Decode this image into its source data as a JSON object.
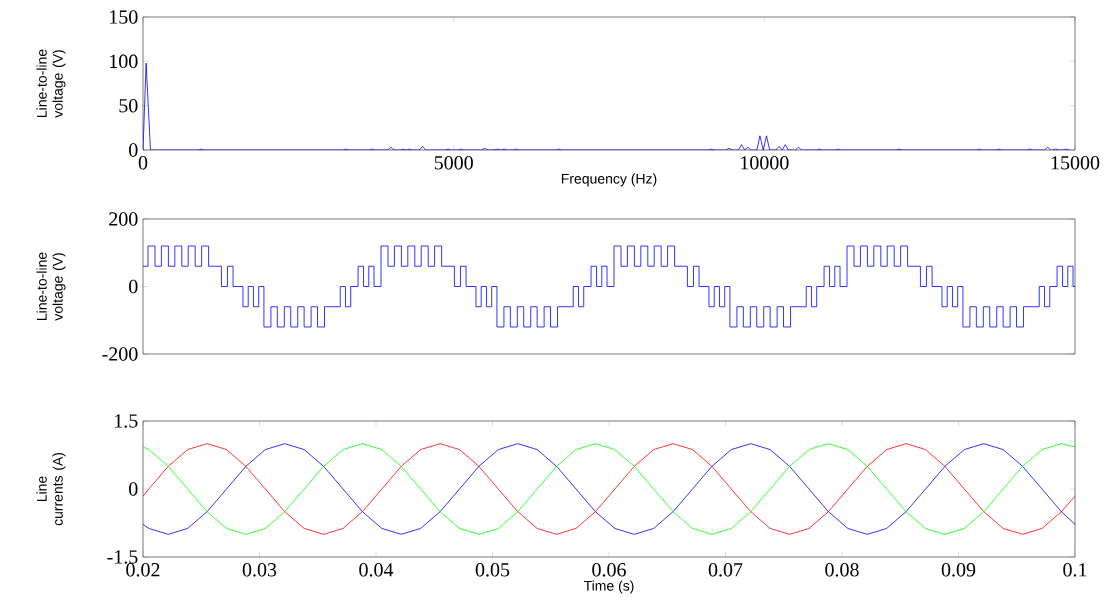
{
  "chart_data": [
    {
      "type": "line",
      "xlabel": "Frequency (Hz)",
      "ylabel": "Line-to-line voltage (V)",
      "xlim": [
        0,
        15000
      ],
      "ylim": [
        0,
        150
      ],
      "xticks": [
        0,
        5000,
        10000,
        15000
      ],
      "yticks": [
        0,
        50,
        100,
        150
      ],
      "series": [
        {
          "color": "#0000ff",
          "x": [
            0,
            50,
            120,
            884,
            934,
            984,
            3220,
            3270,
            3320,
            3640,
            3690,
            3740,
            3940,
            3990,
            4040,
            4140,
            4190,
            4240,
            4290,
            4340,
            4450,
            4500,
            4550,
            4863,
            4913,
            4963,
            5065,
            5115,
            5165,
            5450,
            5500,
            5550,
            5650,
            5700,
            5760,
            5810,
            5860,
            5950,
            6000,
            6050,
            6640,
            6690,
            6740,
            9096,
            9146,
            9196,
            9382,
            9432,
            9482,
            9583,
            9633,
            9683,
            9733,
            9783,
            9880,
            9929,
            9982,
            10035,
            10085,
            10187,
            10237,
            10287,
            10337,
            10387,
            10500,
            10550,
            10600,
            10836,
            10886,
            10936,
            11130,
            11180,
            11230,
            12120,
            12170,
            12220,
            13410,
            13460,
            13510,
            13720,
            13770,
            13820,
            14220,
            14270,
            14320,
            14510,
            14560,
            14610,
            14640,
            14690,
            14740,
            14810,
            14860,
            14910
          ],
          "values": [
            0,
            98,
            0,
            0,
            1,
            0,
            0,
            1,
            0,
            0,
            1,
            0,
            0,
            3,
            0,
            0,
            1,
            0,
            1,
            0,
            0,
            4,
            0,
            0,
            1,
            0,
            0,
            1,
            0,
            0,
            2,
            0,
            0,
            1,
            0,
            1,
            0,
            0,
            1,
            0,
            0,
            1,
            0,
            0,
            1,
            0,
            0,
            2,
            0,
            0,
            6,
            0,
            3,
            0,
            0,
            16,
            0,
            16,
            0,
            0,
            4,
            0,
            6,
            0,
            0,
            3,
            0,
            0,
            1,
            0,
            0,
            1,
            0,
            0,
            1,
            0,
            0,
            1,
            0,
            0,
            1,
            0,
            0,
            1,
            0,
            0,
            3,
            0,
            0,
            1,
            0,
            0,
            1,
            0
          ]
        }
      ]
    },
    {
      "type": "step",
      "ylabel": "Line-to-line voltage (V)",
      "xlim": [
        0.02,
        0.1
      ],
      "ylim": [
        -200,
        200
      ],
      "yticks": [
        -200,
        0,
        200
      ],
      "tick_labels": "y",
      "x": [
        0.02,
        0.02043,
        0.02103,
        0.02158,
        0.02218,
        0.02273,
        0.02333,
        0.02388,
        0.02448,
        0.02503,
        0.02563,
        0.02627,
        0.02673,
        0.02725,
        0.02773,
        0.02858,
        0.02903,
        0.02948,
        0.02993,
        0.03038,
        0.03098,
        0.03153,
        0.03213,
        0.03268,
        0.03328,
        0.03383,
        0.03443,
        0.03498,
        0.03558,
        0.03648,
        0.03693,
        0.03738,
        0.03783,
        0.03846,
        0.03893,
        0.03938,
        0.03983,
        0.04043,
        0.04103,
        0.04158,
        0.04218,
        0.04273,
        0.04333,
        0.04388,
        0.04448,
        0.04503,
        0.04563,
        0.04627,
        0.04673,
        0.04725,
        0.04773,
        0.04858,
        0.04903,
        0.04948,
        0.04993,
        0.05038,
        0.05098,
        0.05153,
        0.05213,
        0.05268,
        0.05328,
        0.05383,
        0.05443,
        0.05498,
        0.05558,
        0.05648,
        0.05693,
        0.05738,
        0.05783,
        0.05846,
        0.05893,
        0.05938,
        0.05983,
        0.06043,
        0.06103,
        0.06158,
        0.06218,
        0.06273,
        0.06333,
        0.06388,
        0.06448,
        0.06503,
        0.06563,
        0.06627,
        0.06673,
        0.06725,
        0.06773,
        0.06858,
        0.06903,
        0.06948,
        0.06993,
        0.07038,
        0.07098,
        0.07153,
        0.07213,
        0.07268,
        0.07328,
        0.07383,
        0.07443,
        0.07498,
        0.07558,
        0.07648,
        0.07693,
        0.07738,
        0.07783,
        0.07846,
        0.07893,
        0.07938,
        0.07983,
        0.08043,
        0.08103,
        0.08158,
        0.08218,
        0.08273,
        0.08333,
        0.08388,
        0.08448,
        0.08503,
        0.08563,
        0.08627,
        0.08673,
        0.08725,
        0.08773,
        0.08858,
        0.08903,
        0.08948,
        0.08993,
        0.09038,
        0.09098,
        0.09153,
        0.09213,
        0.09268,
        0.09328,
        0.09383,
        0.09443,
        0.09498,
        0.09558,
        0.09648,
        0.09693,
        0.09738,
        0.09783,
        0.09846,
        0.09893,
        0.09938,
        0.09983,
        0.1
      ],
      "series": [
        {
          "color": "#0000ff",
          "values": [
            60,
            120,
            60,
            120,
            60,
            120,
            60,
            120,
            60,
            120,
            60,
            60,
            0,
            60,
            0,
            -60,
            0,
            -60,
            0,
            -120,
            -60,
            -120,
            -60,
            -120,
            -60,
            -120,
            -60,
            -120,
            -60,
            -60,
            0,
            -60,
            0,
            60,
            0,
            60,
            0,
            120,
            60,
            120,
            60,
            120,
            60,
            120,
            60,
            120,
            60,
            60,
            0,
            60,
            0,
            -60,
            0,
            -60,
            0,
            -120,
            -60,
            -120,
            -60,
            -120,
            -60,
            -120,
            -60,
            -120,
            -60,
            -60,
            0,
            -60,
            0,
            60,
            0,
            60,
            0,
            120,
            60,
            120,
            60,
            120,
            60,
            120,
            60,
            120,
            60,
            60,
            0,
            60,
            0,
            -60,
            0,
            -60,
            0,
            -120,
            -60,
            -120,
            -60,
            -120,
            -60,
            -120,
            -60,
            -120,
            -60,
            -60,
            0,
            -60,
            0,
            60,
            0,
            60,
            0,
            120,
            60,
            120,
            60,
            120,
            60,
            120,
            60,
            120,
            60,
            60,
            0,
            60,
            0,
            -60,
            0,
            -60,
            0,
            -120,
            -60,
            -120,
            -60,
            -120,
            -60,
            -120,
            -60,
            -120,
            -60,
            -60,
            0,
            -60,
            0,
            60,
            0,
            60,
            0,
            0
          ]
        }
      ]
    },
    {
      "type": "line",
      "xlabel": "Time (s)",
      "ylabel": "Line currents (A)",
      "xlim": [
        0.02,
        0.1
      ],
      "ylim": [
        -1.5,
        1.5
      ],
      "xticks": [
        0.02,
        0.03,
        0.04,
        0.05,
        0.06,
        0.07,
        0.08,
        0.09,
        0.1
      ],
      "yticks": [
        -1.5,
        0,
        1.5
      ],
      "x": [
        0.02,
        0.0205,
        0.02217,
        0.02383,
        0.0255,
        0.02717,
        0.02883,
        0.0305,
        0.03217,
        0.03383,
        0.0355,
        0.03717,
        0.03883,
        0.0405,
        0.04217,
        0.04383,
        0.0455,
        0.04717,
        0.04883,
        0.0505,
        0.05217,
        0.05383,
        0.0555,
        0.05717,
        0.05883,
        0.0605,
        0.06217,
        0.06383,
        0.0655,
        0.06717,
        0.06883,
        0.0705,
        0.07217,
        0.07383,
        0.0755,
        0.07717,
        0.07883,
        0.0805,
        0.08217,
        0.08383,
        0.0855,
        0.08717,
        0.08883,
        0.0905,
        0.09217,
        0.09383,
        0.0955,
        0.09717,
        0.09883,
        0.1
      ],
      "series": [
        {
          "color": "#ff0000",
          "values": [
            -0.16,
            0,
            0.5,
            0.87,
            1,
            0.87,
            0.5,
            0,
            -0.5,
            -0.87,
            -1,
            -0.87,
            -0.5,
            0,
            0.5,
            0.87,
            1,
            0.87,
            0.5,
            0,
            -0.5,
            -0.87,
            -1,
            -0.87,
            -0.5,
            0,
            0.5,
            0.87,
            1,
            0.87,
            0.5,
            0,
            -0.5,
            -0.87,
            -1,
            -0.87,
            -0.5,
            0,
            0.5,
            0.87,
            1,
            0.87,
            0.5,
            0,
            -0.5,
            -0.87,
            -1,
            -0.87,
            -0.5,
            -0.16
          ]
        },
        {
          "color": "#0000ff",
          "values": [
            -0.78,
            -0.87,
            -1,
            -0.87,
            -0.5,
            0,
            0.5,
            0.87,
            1,
            0.87,
            0.5,
            0,
            -0.5,
            -0.87,
            -1,
            -0.87,
            -0.5,
            0,
            0.5,
            0.87,
            1,
            0.87,
            0.5,
            0,
            -0.5,
            -0.87,
            -1,
            -0.87,
            -0.5,
            0,
            0.5,
            0.87,
            1,
            0.87,
            0.5,
            0,
            -0.5,
            -0.87,
            -1,
            -0.87,
            -0.5,
            0,
            0.5,
            0.87,
            1,
            0.87,
            0.5,
            0,
            -0.5,
            -0.78
          ]
        },
        {
          "color": "#00ff00",
          "values": [
            0.93,
            0.87,
            0.5,
            0,
            -0.5,
            -0.87,
            -1,
            -0.87,
            -0.5,
            0,
            0.5,
            0.87,
            1,
            0.87,
            0.5,
            0,
            -0.5,
            -0.87,
            -1,
            -0.87,
            -0.5,
            0,
            0.5,
            0.87,
            1,
            0.87,
            0.5,
            0,
            -0.5,
            -0.87,
            -1,
            -0.87,
            -0.5,
            0,
            0.5,
            0.87,
            1,
            0.87,
            0.5,
            0,
            -0.5,
            -0.87,
            -1,
            -0.87,
            -0.5,
            0,
            0.5,
            0.87,
            1,
            0.93
          ]
        }
      ]
    }
  ]
}
